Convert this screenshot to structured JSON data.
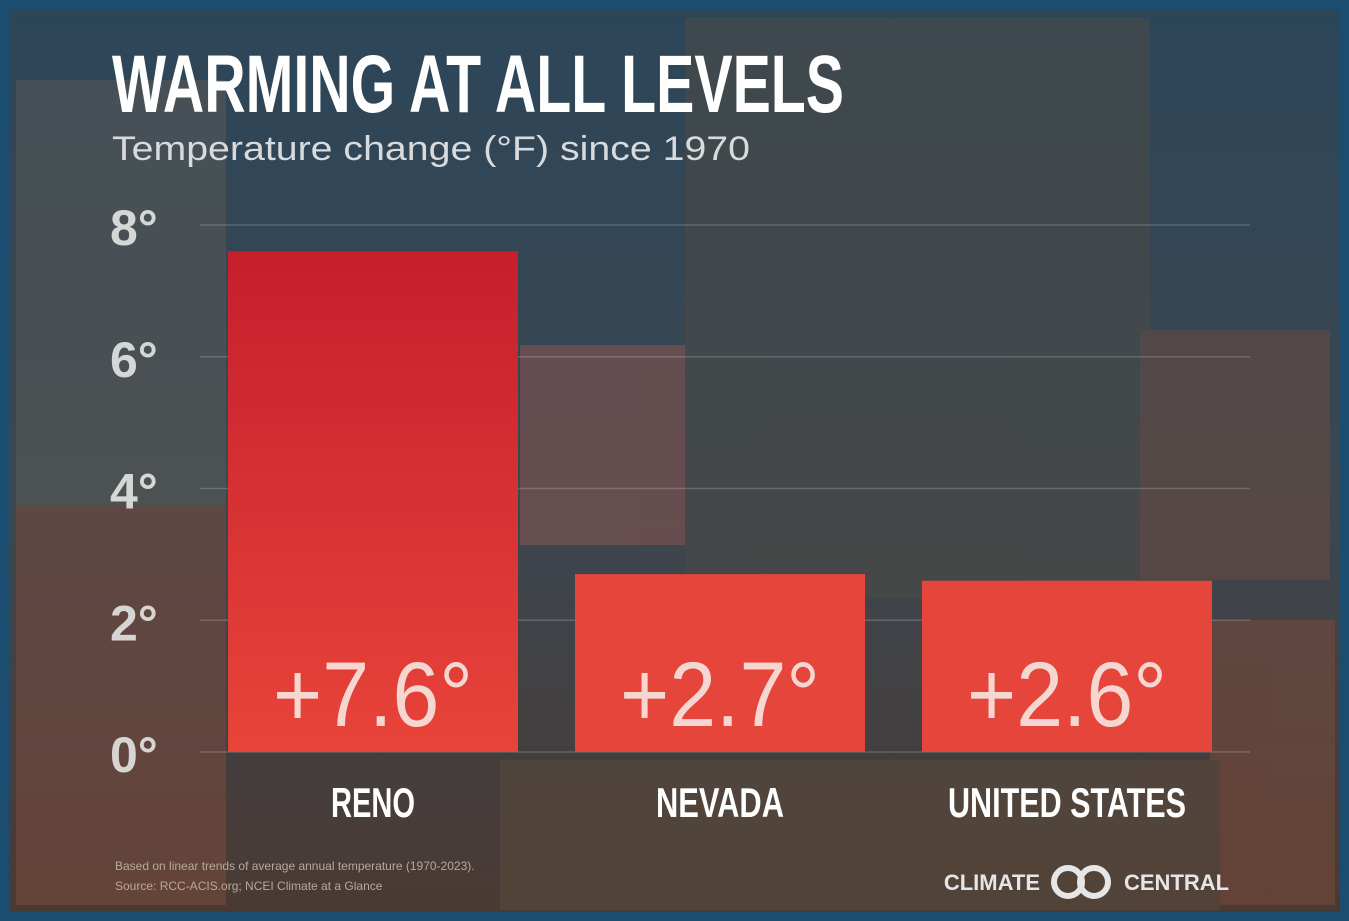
{
  "chart_data": {
    "type": "bar",
    "title": "WARMING AT ALL LEVELS",
    "subtitle": "Temperature change (°F) since 1970",
    "categories": [
      "RENO",
      "NEVADA",
      "UNITED STATES"
    ],
    "values": [
      7.6,
      2.7,
      2.6
    ],
    "value_labels": [
      "+7.6°",
      "+2.7°",
      "+2.6°"
    ],
    "color": "#e5453a",
    "ylim": [
      0,
      8
    ],
    "yticks": [
      {
        "value": 0,
        "label": "0°"
      },
      {
        "value": 2,
        "label": "2°"
      },
      {
        "value": 4,
        "label": "4°"
      },
      {
        "value": 6,
        "label": "6°"
      },
      {
        "value": 8,
        "label": "8°"
      }
    ],
    "grid": true,
    "footnotes": [
      "Based on linear trends of average annual temperature (1970-2023).",
      "Source: RCC-ACIS.org; NCEI Climate at a Glance"
    ],
    "logo": [
      "CLIMATE",
      "CENTRAL"
    ]
  }
}
